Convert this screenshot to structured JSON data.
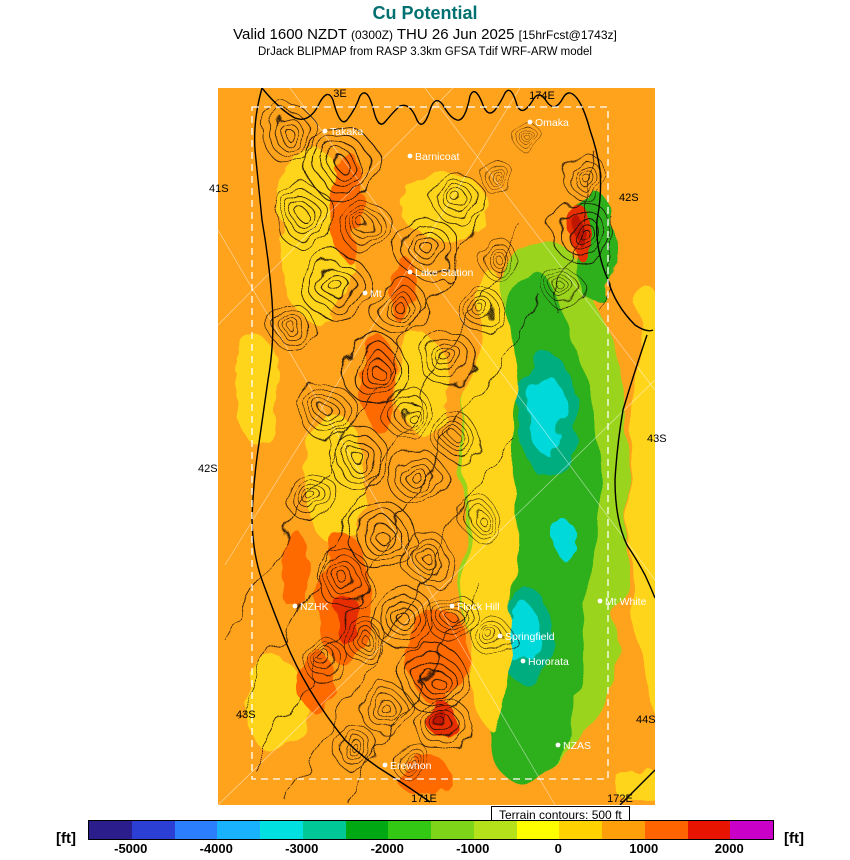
{
  "header": {
    "title": "Cu Potential",
    "valid": {
      "part1": "Valid 1600 NZDT ",
      "zulu": "(0300Z)",
      "part2": " THU 26 Jun 2025 ",
      "fcst": "[15hrFcst@1743z]"
    },
    "model_line": "DrJack BLIPMAP from RASP 3.3km GFSA Tdif WRF-ARW model"
  },
  "map": {
    "coord_labels": [
      "3E",
      "174E",
      "41S",
      "42S",
      "42S",
      "43S",
      "43S",
      "44S",
      "171E",
      "172E"
    ],
    "waypoints": [
      {
        "name": "Takaka"
      },
      {
        "name": "Barnicoat"
      },
      {
        "name": "Omaka"
      },
      {
        "name": "Lake Station"
      },
      {
        "name": "Mt"
      },
      {
        "name": "NZHK"
      },
      {
        "name": "Flock Hill"
      },
      {
        "name": "Springfield"
      },
      {
        "name": "Hororata"
      },
      {
        "name": "Mt White"
      },
      {
        "name": "NZAS"
      },
      {
        "name": "Erewhon"
      }
    ],
    "terrain_note": "Terrain contours: 500 ft"
  },
  "colorbar": {
    "unit": "[ft]",
    "ticks": [
      "-5000",
      "-4000",
      "-3000",
      "-2000",
      "-1000",
      "0",
      "1000",
      "2000"
    ],
    "segments": [
      "#2b1e8c",
      "#2b3fd4",
      "#2b7fff",
      "#19b2ff",
      "#00e0e0",
      "#00c896",
      "#00a814",
      "#32c814",
      "#7dd419",
      "#b4e119",
      "#ffff00",
      "#ffd200",
      "#ffa00a",
      "#ff6400",
      "#e61400",
      "#c800c8"
    ]
  },
  "colors": {
    "title_teal": "#007070",
    "field_orange": "#ffa21c",
    "field_yellow": "#ffd51b",
    "field_red": "#ff6a00",
    "field_deep_red": "#c01800",
    "field_green": "#2faf1e",
    "field_cyan": "#00d9d9"
  }
}
